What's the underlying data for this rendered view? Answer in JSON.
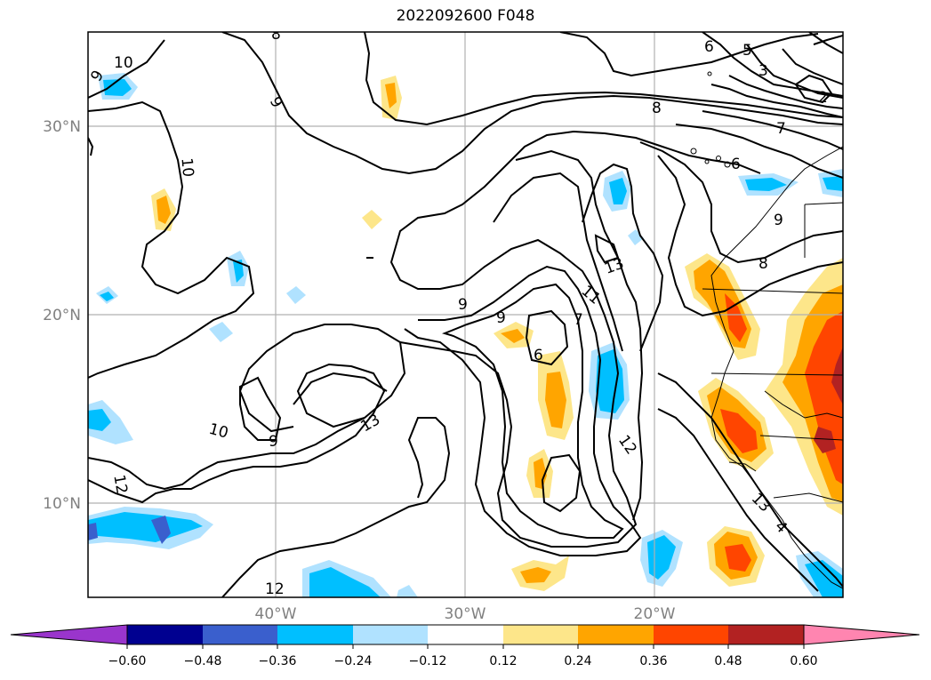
{
  "title": "2022092600 F048",
  "map": {
    "lat_labels": [
      "30°N",
      "20°N",
      "10°N"
    ],
    "lon_labels": [
      "40°W",
      "30°W",
      "20°W"
    ],
    "contour_labels": [
      "10",
      "9",
      "8",
      "6",
      "5",
      "3",
      "2",
      "8",
      "7",
      "6",
      "10",
      "9",
      "9",
      "8",
      "13",
      "11",
      "7",
      "6",
      "9",
      "9",
      "10",
      "9",
      "13",
      "12",
      "12",
      "12",
      "13",
      "4"
    ],
    "colors": {
      "frame": "#000000",
      "grid": "#b0b0b0",
      "contour": "#000000",
      "label": "#808080"
    }
  },
  "colorbar": {
    "ticks": [
      "−0.60",
      "−0.48",
      "−0.36",
      "−0.24",
      "−0.12",
      "0.12",
      "0.24",
      "0.36",
      "0.48",
      "0.60"
    ],
    "bins": [
      "#9a35cc",
      "#000090",
      "#3a5fcd",
      "#00bfff",
      "#b0e2ff",
      "#ffffff",
      "#fde68a",
      "#ffa500",
      "#ff4500",
      "#b22222",
      "#ff85b0"
    ]
  }
}
